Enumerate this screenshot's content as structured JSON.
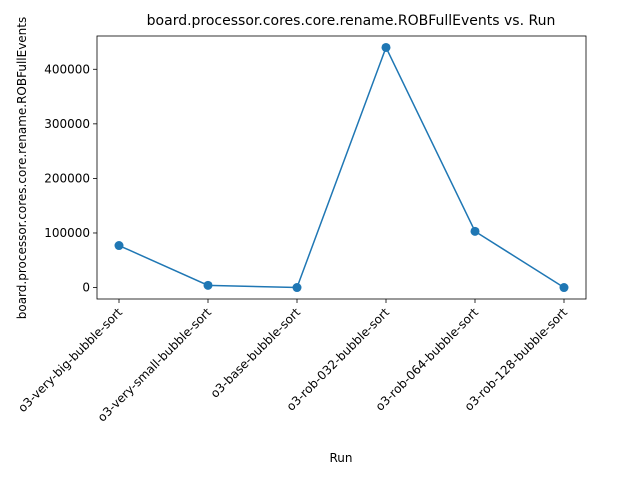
{
  "chart_data": {
    "type": "line",
    "title": "board.processor.cores.core.rename.ROBFullEvents vs. Run",
    "xlabel": "Run",
    "ylabel": "board.processor.cores.core.rename.ROBFullEvents",
    "categories": [
      "o3-very-big-bubble-sort",
      "o3-very-small-bubble-sort",
      "o3-base-bubble-sort",
      "o3-rob-032-bubble-sort",
      "o3-rob-064-bubble-sort",
      "o3-rob-128-bubble-sort"
    ],
    "series": [
      {
        "values": [
          77000,
          4000,
          0,
          440000,
          103000,
          0
        ],
        "color": "#1f77b4",
        "marker": "circle"
      }
    ],
    "ylim": [
      -21000,
      461000
    ],
    "yticks": [
      0,
      100000,
      200000,
      300000,
      400000
    ],
    "ytick_labels": [
      "0",
      "100000",
      "200000",
      "300000",
      "400000"
    ],
    "grid": false,
    "legend": "none"
  }
}
